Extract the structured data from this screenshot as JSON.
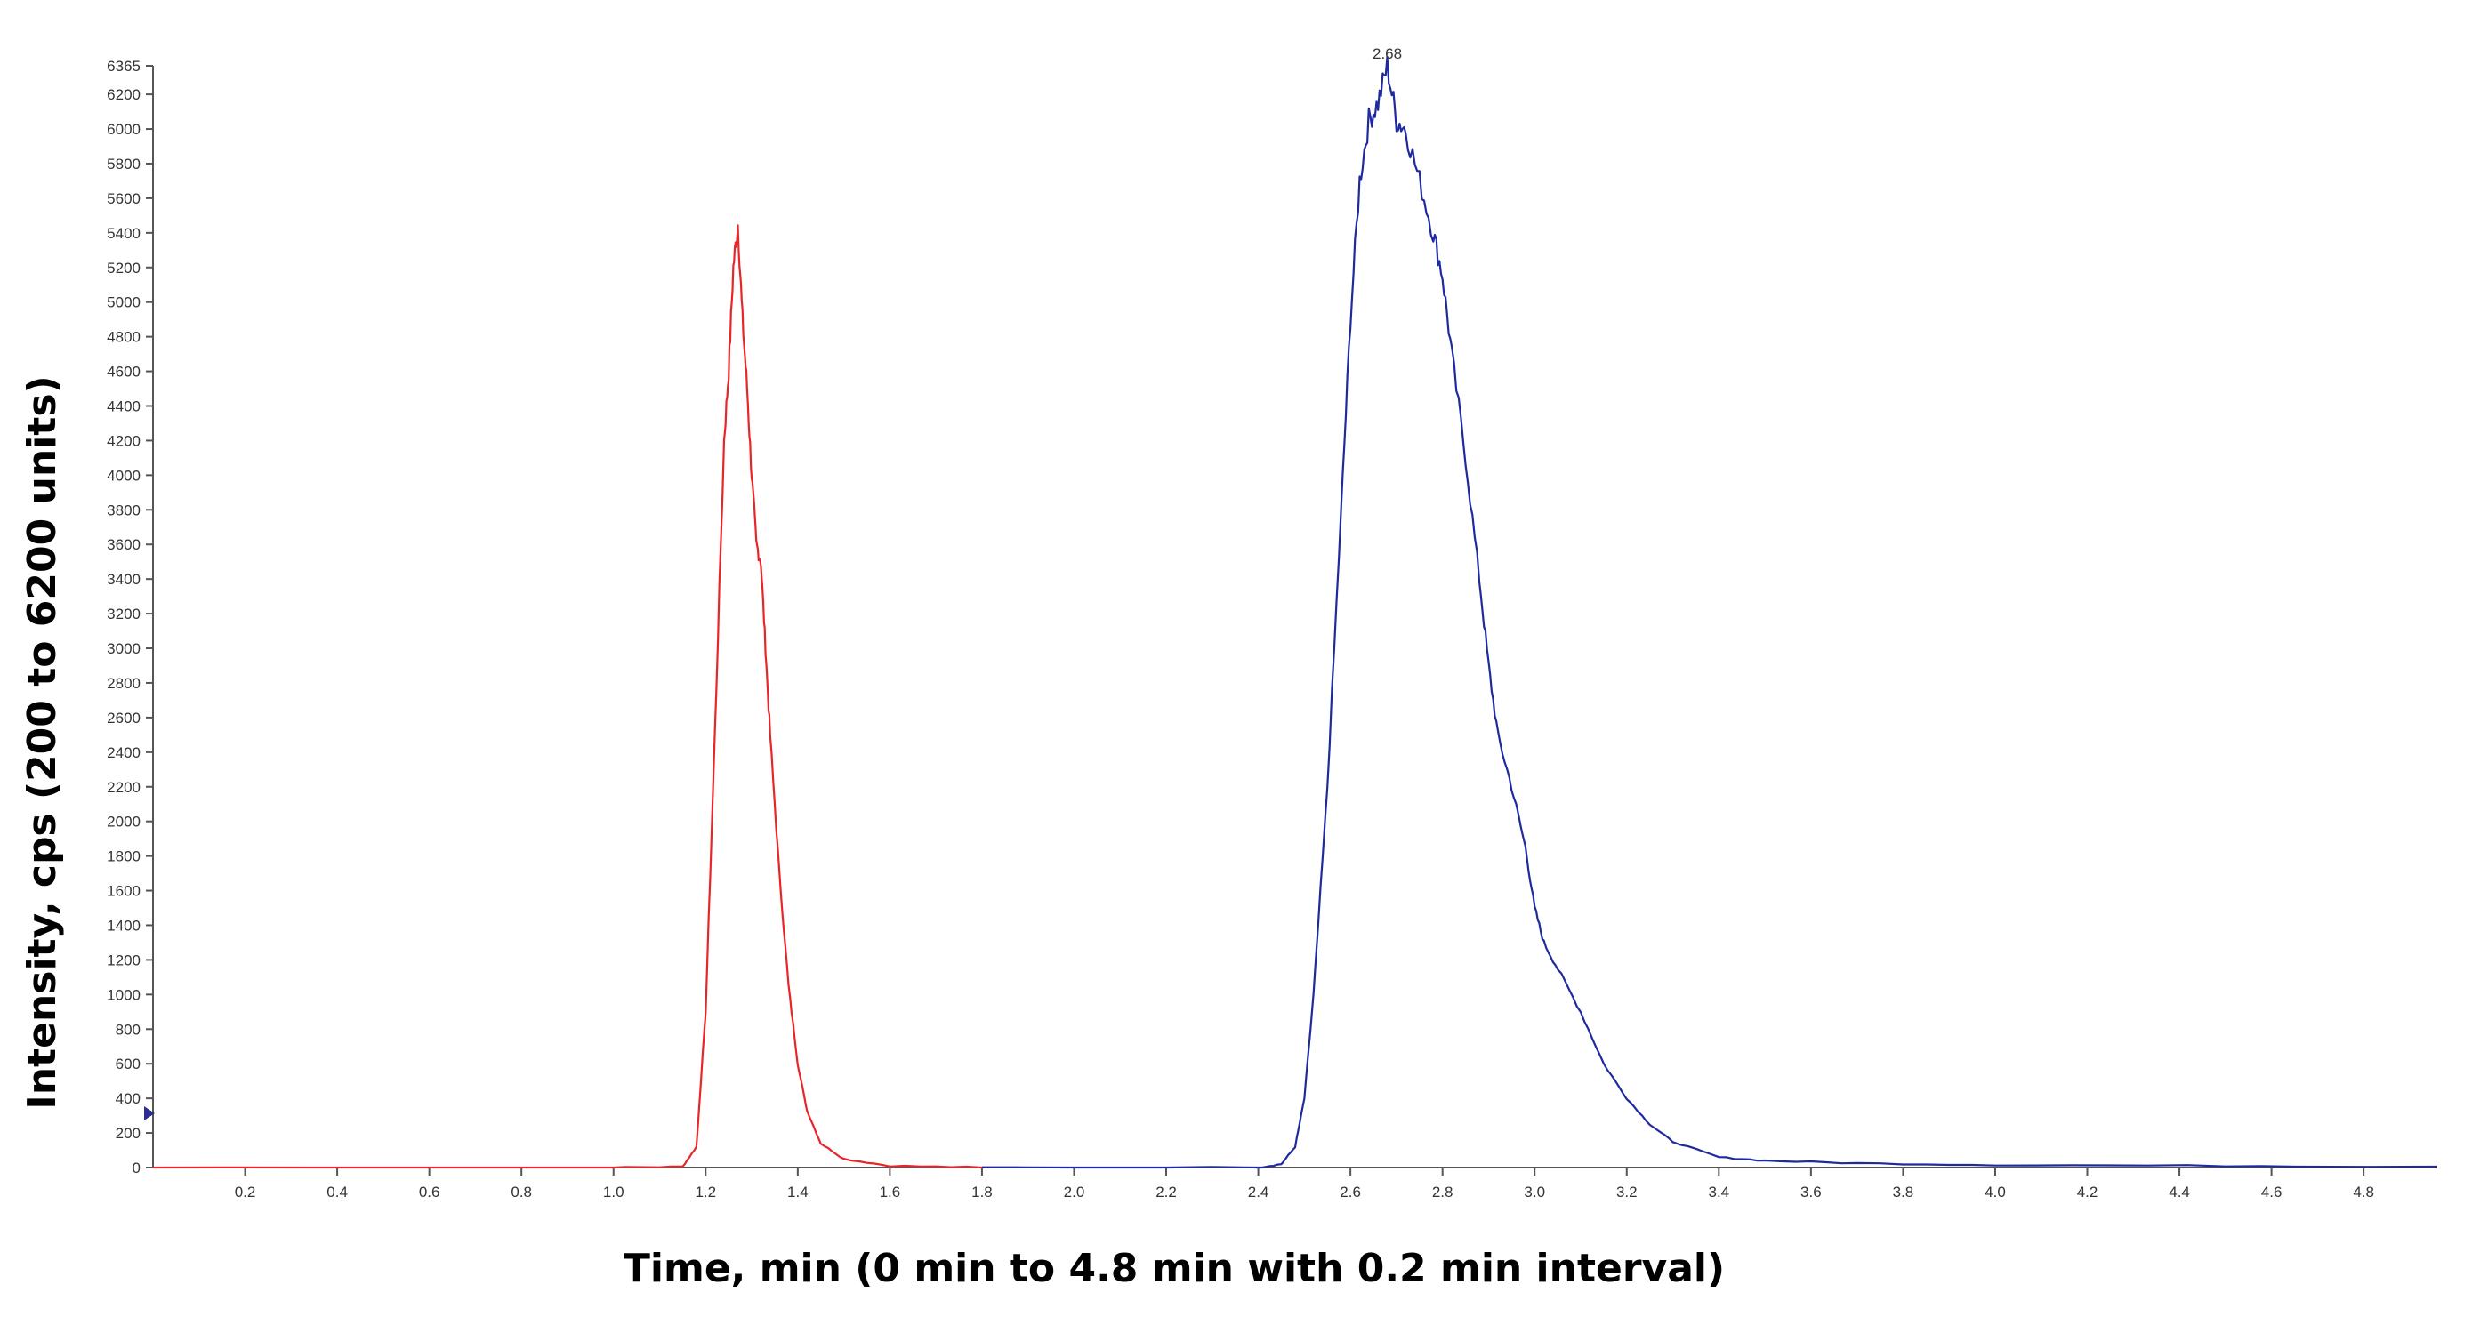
{
  "chart_data": {
    "type": "line",
    "title": "",
    "xlabel": "Time, min (0 min to 4.8 min with 0.2 min interval)",
    "ylabel": "Intensity, cps (200 to 6200 units)",
    "xlim": [
      0,
      4.96
    ],
    "ylim": [
      0,
      6365
    ],
    "x_ticks": [
      0.2,
      0.4,
      0.6,
      0.8,
      1.0,
      1.2,
      1.4,
      1.6,
      1.8,
      2.0,
      2.2,
      2.4,
      2.6,
      2.8,
      3.0,
      3.2,
      3.4,
      3.6,
      3.8,
      4.0,
      4.2,
      4.4,
      4.6,
      4.8
    ],
    "x_tick_labels": [
      "0.2",
      "0.4",
      "0.6",
      "0.8",
      "1.0",
      "1.2",
      "1.4",
      "1.6",
      "1.8",
      "2.0",
      "2.2",
      "2.4",
      "2.6",
      "2.8",
      "3.0",
      "3.2",
      "3.4",
      "3.6",
      "3.8",
      "4.0",
      "4.2",
      "4.4",
      "4.6",
      "4.8"
    ],
    "y_ticks": [
      0,
      200,
      400,
      600,
      800,
      1000,
      1200,
      1400,
      1600,
      1800,
      2000,
      2200,
      2400,
      2600,
      2800,
      3000,
      3200,
      3400,
      3600,
      3800,
      4000,
      4200,
      4400,
      4600,
      4800,
      5000,
      5200,
      5400,
      5600,
      5800,
      6000,
      6200,
      6365
    ],
    "grid": false,
    "series": [
      {
        "color": "#e8262a",
        "x": [
          0.0,
          1.0,
          1.15,
          1.18,
          1.2,
          1.22,
          1.24,
          1.25,
          1.26,
          1.27,
          1.28,
          1.29,
          1.3,
          1.31,
          1.32,
          1.33,
          1.34,
          1.36,
          1.38,
          1.4,
          1.42,
          1.45,
          1.5,
          1.6,
          1.8
        ],
        "y": [
          0,
          0,
          5,
          120,
          900,
          2500,
          4200,
          4600,
          5200,
          5450,
          4900,
          4500,
          4000,
          3600,
          3500,
          3000,
          2500,
          1700,
          1050,
          600,
          330,
          140,
          50,
          10,
          0
        ]
      },
      {
        "color": "#1f2a9e",
        "x": [
          1.8,
          2.4,
          2.45,
          2.48,
          2.5,
          2.52,
          2.55,
          2.58,
          2.6,
          2.62,
          2.64,
          2.66,
          2.68,
          2.7,
          2.72,
          2.75,
          2.78,
          2.8,
          2.82,
          2.85,
          2.88,
          2.9,
          2.92,
          2.95,
          2.98,
          3.0,
          3.02,
          3.05,
          3.1,
          3.15,
          3.2,
          3.25,
          3.3,
          3.4,
          3.5,
          3.7,
          4.0,
          4.5,
          4.96
        ],
        "y": [
          0,
          0,
          20,
          120,
          400,
          1000,
          2200,
          3800,
          4900,
          5700,
          6050,
          6150,
          6365,
          6050,
          6000,
          5700,
          5400,
          5150,
          4700,
          4100,
          3400,
          2900,
          2500,
          2200,
          1850,
          1500,
          1300,
          1150,
          900,
          600,
          400,
          250,
          150,
          60,
          40,
          25,
          15,
          10,
          5
        ]
      }
    ],
    "annotations": [
      {
        "text": "2.68",
        "x": 2.68,
        "y": 6365
      }
    ]
  }
}
